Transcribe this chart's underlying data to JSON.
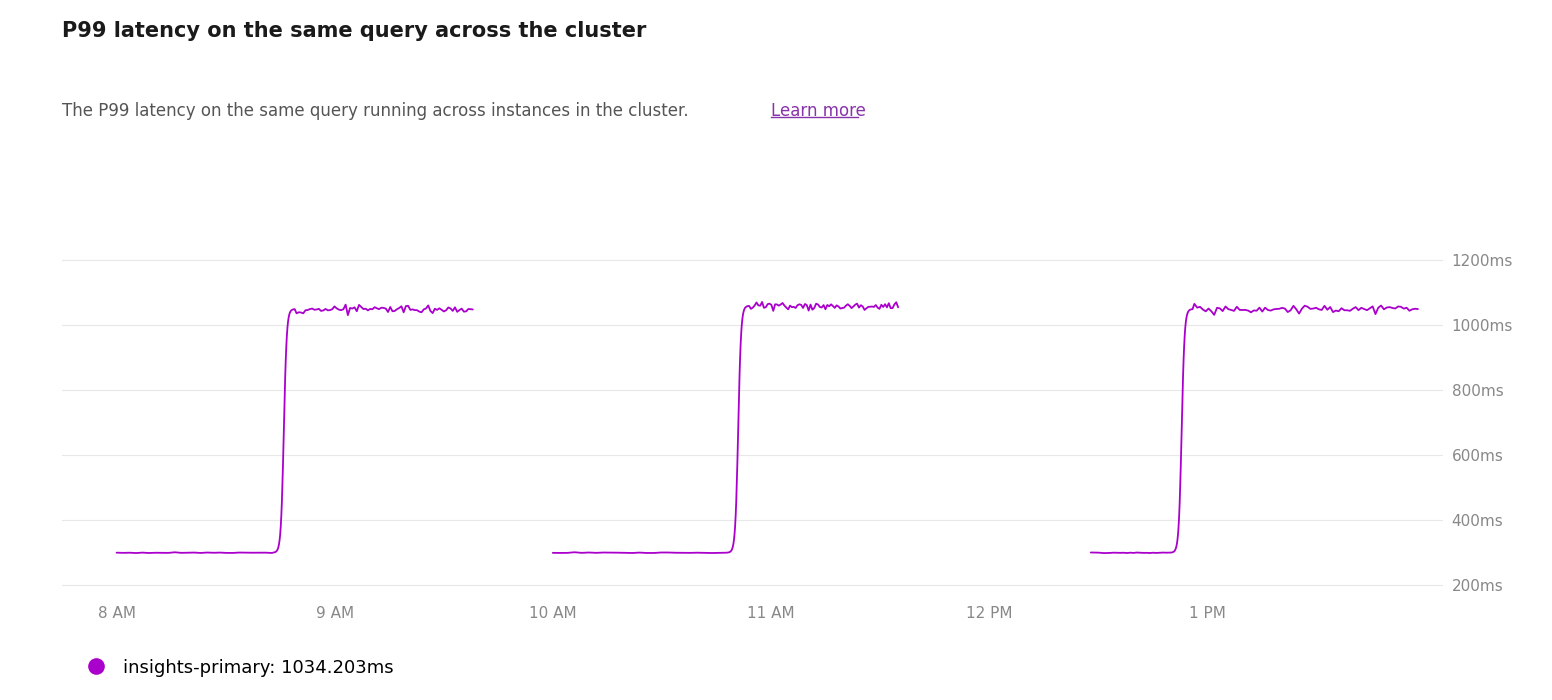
{
  "title": "P99 latency on the same query across the cluster",
  "subtitle": "The P99 latency on the same query running across instances in the cluster. ",
  "subtitle_link": "Learn more",
  "legend_label": "insights-primary: 1034.203ms",
  "legend_color": "#aa00cc",
  "line_color": "#aa00cc",
  "background_color": "#ffffff",
  "y_ticks": [
    200,
    400,
    600,
    800,
    1000,
    1200
  ],
  "y_tick_labels": [
    "200ms",
    "400ms",
    "600ms",
    "800ms",
    "1000ms",
    "1200ms"
  ],
  "ylim": [
    170,
    1290
  ],
  "x_tick_labels": [
    "8 AM",
    "9 AM",
    "10 AM",
    "11 AM",
    "12 PM",
    "1 PM"
  ],
  "x_tick_positions": [
    0,
    60,
    120,
    180,
    240,
    300
  ],
  "xlim": [
    -15,
    365
  ]
}
